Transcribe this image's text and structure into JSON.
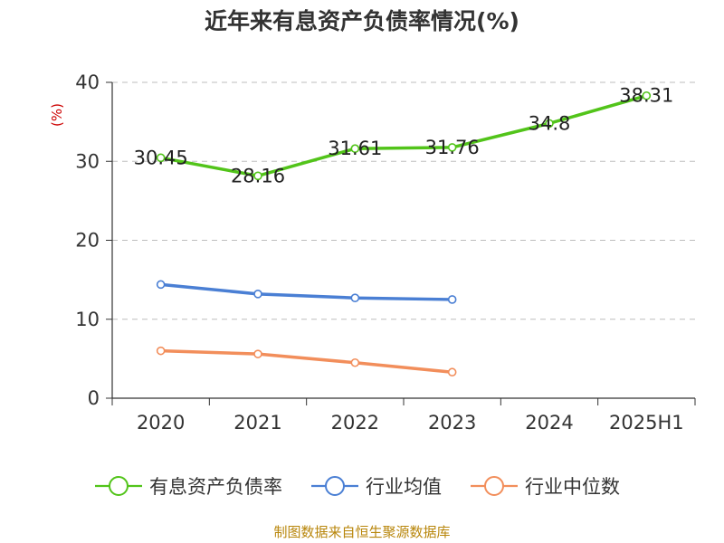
{
  "chart_data": {
    "type": "line",
    "title": "近年来有息资产负债率情况(%)",
    "ylabel": "(%)",
    "xlabel": "",
    "categories": [
      "2020",
      "2021",
      "2022",
      "2023",
      "2024",
      "2025H1"
    ],
    "ylim": [
      0,
      40
    ],
    "yticks": [
      0,
      10,
      20,
      30,
      40
    ],
    "grid": "horizontal dashed",
    "legend": "bottom",
    "series": [
      {
        "name": "有息资产负债率",
        "color": "#52c41a",
        "values": [
          30.45,
          28.16,
          31.61,
          31.76,
          34.8,
          38.31
        ],
        "labels": [
          "30.45",
          "28.16",
          "31.61",
          "31.76",
          "34.8",
          "38.31"
        ]
      },
      {
        "name": "行业均值",
        "color": "#4a7fd4",
        "values": [
          14.4,
          13.2,
          12.7,
          12.5,
          null,
          null
        ]
      },
      {
        "name": "行业中位数",
        "color": "#f28e5b",
        "values": [
          6.0,
          5.6,
          4.5,
          3.3,
          null,
          null
        ]
      }
    ]
  },
  "source": "制图数据来自恒生聚源数据库"
}
